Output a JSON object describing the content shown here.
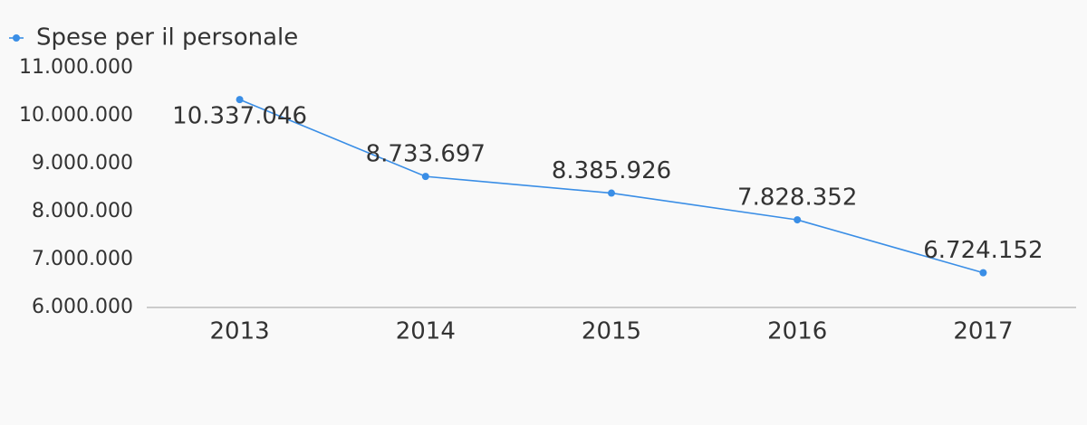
{
  "chart_data": {
    "type": "line",
    "categories": [
      "2013",
      "2014",
      "2015",
      "2016",
      "2017"
    ],
    "series": [
      {
        "name": "Spese per il personale",
        "color": "#3a8ee6",
        "values": [
          10337046,
          8733697,
          8385926,
          7828352,
          6724152
        ],
        "value_labels": [
          "10.337.046",
          "8.733.697",
          "8.385.926",
          "7.828.352",
          "6.724.152"
        ]
      }
    ],
    "ylim": [
      6000000,
      11000000
    ],
    "yticks": [
      {
        "value": 6000000,
        "label": "6.000.000"
      },
      {
        "value": 7000000,
        "label": "7.000.000"
      },
      {
        "value": 8000000,
        "label": "8.000.000"
      },
      {
        "value": 9000000,
        "label": "9.000.000"
      },
      {
        "value": 10000000,
        "label": "10.000.000"
      },
      {
        "value": 11000000,
        "label": "11.000.000"
      }
    ],
    "grid": false,
    "legend": "top-left"
  }
}
